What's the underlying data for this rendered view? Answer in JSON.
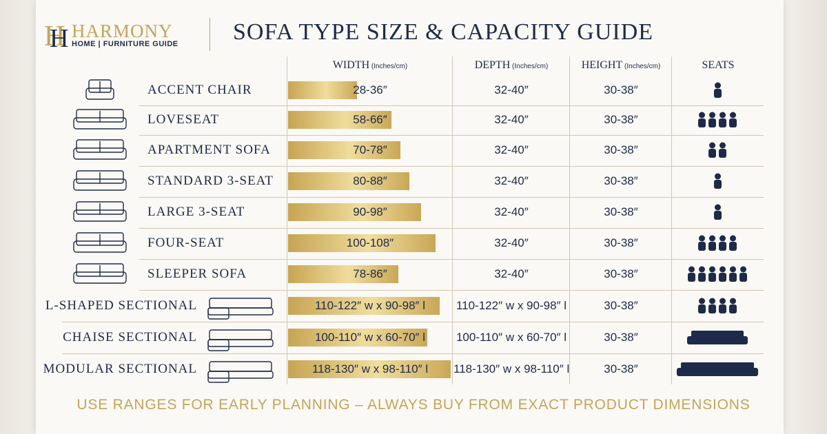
{
  "header": {
    "logo": "HARMONY",
    "tagline": "HOME | FURNITURE GUIDE",
    "title": "SOFA TYPE SIZE & CAPACITY GUIDE"
  },
  "table": {
    "columns": [
      {
        "label": "WIDTH",
        "unit": "(Inches/cm)"
      },
      {
        "label": "DEPTH",
        "unit": "(Inches/cm)"
      },
      {
        "label": "HEIGHT",
        "unit": "(Inches/cm)"
      },
      {
        "label": "SEATS"
      }
    ],
    "rows": [
      [
        "ACCENT CHAIR",
        "28-36″",
        "32-40″",
        "30-38″"
      ],
      [
        "LOVESEAT",
        "58-66″",
        "32-40″",
        "30-38″"
      ],
      [
        "APARTMENT SOFA",
        "70-78″",
        "32-40″",
        "30-38″"
      ],
      [
        "STANDARD 3-SEAT",
        "80-88″",
        "32-40″",
        "30-38″"
      ],
      [
        "LARGE 3-SEAT",
        "90-98″",
        "32-40″",
        "30-38″"
      ],
      [
        "FOUR-SEAT",
        "100-108″",
        "32-40″",
        "30-38″"
      ],
      [
        "SLEEPER SOFA",
        "78-86″",
        "32-40″",
        "30-38″"
      ],
      [
        "L-SHAPED SECTIONAL",
        "110-122″ w x 90-98″ l",
        "110-122″ w x 90-98″ l",
        "30-38″"
      ],
      [
        "CHAISE SECTIONAL",
        "100-110″ w x 60-70″ l",
        "100-110″ w x 60-70″ l",
        "30-38″"
      ],
      [
        "MODULAR SECTIONAL",
        "118-130″ w x 98-110″ l",
        "118-130″ w x 98-110″ l",
        "30-38″"
      ]
    ]
  },
  "footer": "USE RANGES FOR EARLY PLANNING – ALWAYS BUY FROM EXACT PRODUCT DIMENSIONS"
}
